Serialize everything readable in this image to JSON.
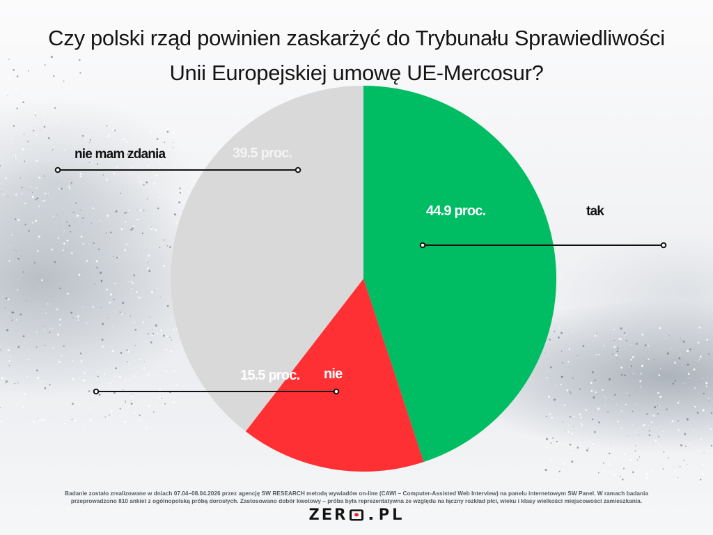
{
  "title": {
    "line1": "Czy polski rząd powinien zaskarżyć do Trybunału Sprawiedliwości",
    "line2": "Unii Europejskiej umowę UE-Mercosur?"
  },
  "chart_data": {
    "type": "pie",
    "title": "Czy polski rząd powinien zaskarżyć do Trybunału Sprawiedliwości Unii Europejskiej umowę UE-Mercosur?",
    "categories": [
      "tak",
      "nie",
      "nie mam zdania"
    ],
    "values": [
      44.9,
      15.5,
      39.5
    ],
    "unit": "proc.",
    "colors": [
      "#00bd63",
      "#fe3034",
      "#d9d9d9"
    ],
    "start_angle": "12 o'clock, clockwise",
    "labels": {
      "tak": "44.9 proc.",
      "nie": "15.5 proc.",
      "nie mam zdania": "39.5 proc."
    },
    "legend": "callout lines with labels"
  },
  "labels": {
    "tak": {
      "pct": "44.9 proc.",
      "name": "tak"
    },
    "nie": {
      "pct": "15.5 proc.",
      "name": "nie"
    },
    "nie_mam_zdania": {
      "pct": "39.5 proc.",
      "name": "nie mam zdania"
    }
  },
  "footer": {
    "line1": "Badanie zostało zrealizowane w dniach 07.04–08.04.2026 przez agencję SW RESEARCH metodą wywiadów on-line (CAWI – Computer-Assisted Web Interview) na panelu internetowym SW Panel. W ramach badania",
    "line2": "przeprowadzono 810 ankiet z ogólnopolską próbą dorosłych. Zastosowano dobór kwotowy – próba była reprezentatywna ze względu na łączny rozkład płci, wieku i klasy wielkości miejscowości zamieszkania."
  },
  "logo": {
    "part1": "ZER",
    "part2": ".PL",
    "dot_color": "#e8252c"
  }
}
